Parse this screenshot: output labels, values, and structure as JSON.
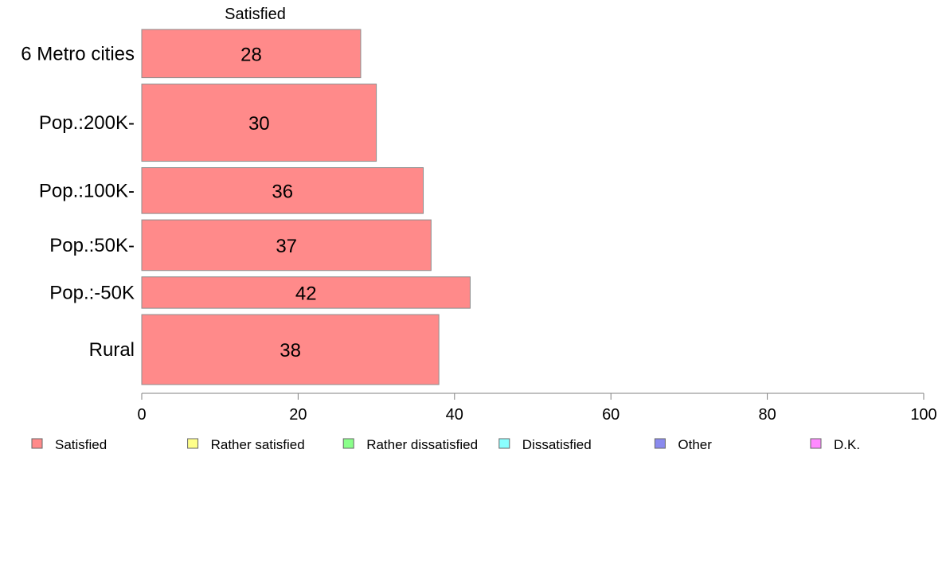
{
  "chart_data": {
    "type": "bar",
    "orientation": "horizontal",
    "categories": [
      "6 Metro cities",
      "Pop.:200K-",
      "Pop.:100K-",
      "Pop.:50K-",
      "Pop.:-50K",
      "Rural"
    ],
    "series": [
      {
        "name": "Satisfied",
        "values": [
          28,
          30,
          36,
          37,
          42,
          38
        ],
        "value_labels": [
          "28",
          "30",
          "36",
          "37",
          "42",
          "38"
        ]
      }
    ],
    "series_title": "Satisfied",
    "category_weights": [
      1.0,
      1.6,
      0.95,
      1.05,
      0.65,
      1.45
    ],
    "xlim": [
      0,
      100
    ],
    "x_ticks": [
      0,
      20,
      40,
      60,
      80,
      100
    ],
    "x_tick_labels": [
      "0",
      "20",
      "40",
      "60",
      "80",
      "100"
    ],
    "grid": false,
    "legend_position": "bottom",
    "legend": [
      {
        "label": "Satisfied",
        "color": "#ff8a8a"
      },
      {
        "label": "Rather satisfied",
        "color": "#ffff8a"
      },
      {
        "label": "Rather dissatisfied",
        "color": "#8aff8a"
      },
      {
        "label": "Dissatisfied",
        "color": "#8affff"
      },
      {
        "label": "Other",
        "color": "#8a8aee"
      },
      {
        "label": "D.K.",
        "color": "#ff8aff"
      }
    ],
    "colors": {
      "bar_fill": "#ff8a8a",
      "bar_stroke": "#8c8c8c",
      "axis": "#808080"
    }
  }
}
